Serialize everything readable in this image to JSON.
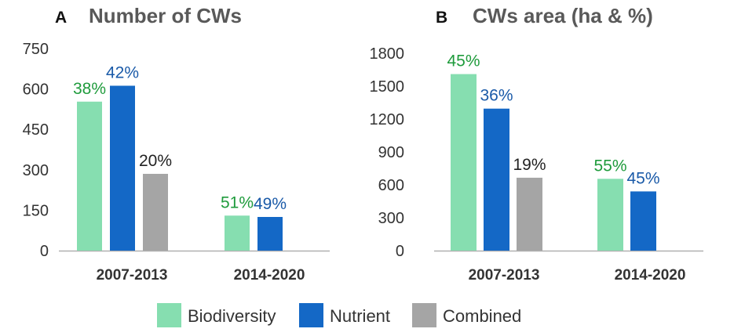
{
  "colors": {
    "biodiversity": "#86deb0",
    "nutrient": "#1468c6",
    "combined": "#a5a5a5",
    "biodiversity_label": "#1f9b3c",
    "nutrient_label": "#1a5aa8",
    "combined_label": "#222222",
    "axis": "#b0b0b0"
  },
  "legend": [
    {
      "key": "biodiversity",
      "label": "Biodiversity"
    },
    {
      "key": "nutrient",
      "label": "Nutrient"
    },
    {
      "key": "combined",
      "label": "Combined"
    }
  ],
  "chart_data": [
    {
      "type": "bar",
      "panel": "A",
      "title": "Number of CWs",
      "categories": [
        "2007-2013",
        "2014-2020"
      ],
      "ylim": [
        0,
        750
      ],
      "yticks": [
        0,
        150,
        300,
        450,
        600,
        750
      ],
      "series": [
        {
          "name": "Biodiversity",
          "key": "biodiversity",
          "values": [
            553,
            130
          ],
          "labels": [
            "38%",
            "51%"
          ]
        },
        {
          "name": "Nutrient",
          "key": "nutrient",
          "values": [
            612,
            125
          ],
          "labels": [
            "42%",
            "49%"
          ]
        },
        {
          "name": "Combined",
          "key": "combined",
          "values": [
            285,
            null
          ],
          "labels": [
            "20%",
            null
          ]
        }
      ]
    },
    {
      "type": "bar",
      "panel": "B",
      "title": "CWs area (ha & %)",
      "categories": [
        "2007-2013",
        "2014-2020"
      ],
      "ylim": [
        0,
        1800
      ],
      "yticks": [
        0,
        300,
        600,
        900,
        1200,
        1500,
        1800
      ],
      "series": [
        {
          "name": "Biodiversity",
          "key": "biodiversity",
          "values": [
            1610,
            655
          ],
          "labels": [
            "45%",
            "55%"
          ]
        },
        {
          "name": "Nutrient",
          "key": "nutrient",
          "values": [
            1295,
            540
          ],
          "labels": [
            "36%",
            "45%"
          ]
        },
        {
          "name": "Combined",
          "key": "combined",
          "values": [
            665,
            null
          ],
          "labels": [
            "19%",
            null
          ]
        }
      ]
    }
  ]
}
